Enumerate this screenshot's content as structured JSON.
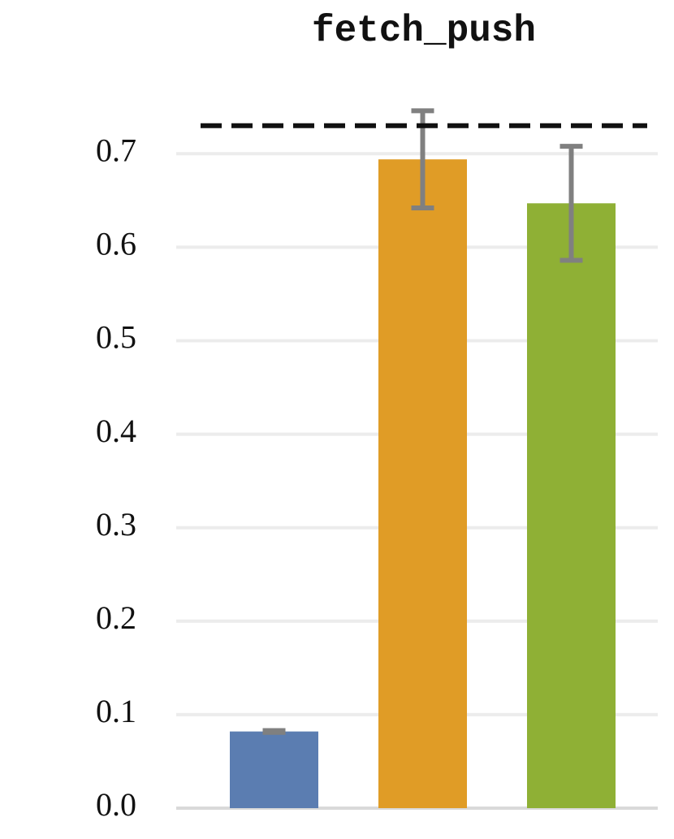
{
  "chart_data": {
    "type": "bar",
    "title": "fetch_push",
    "categories": [
      null,
      null,
      null
    ],
    "values": [
      0.082,
      0.694,
      0.647
    ],
    "errors": [
      0.001,
      0.052,
      0.061
    ],
    "colors": [
      "#5b7db1",
      "#e09c26",
      "#8fb035"
    ],
    "error_color": "#808080",
    "reference_line": 0.73,
    "ylim": [
      0,
      0.76
    ],
    "yticks": [
      {
        "value": 0,
        "label": "0.0"
      },
      0.1,
      0.2,
      0.3,
      0.4,
      0.5,
      0.6,
      0.7
    ],
    "grid": true
  }
}
